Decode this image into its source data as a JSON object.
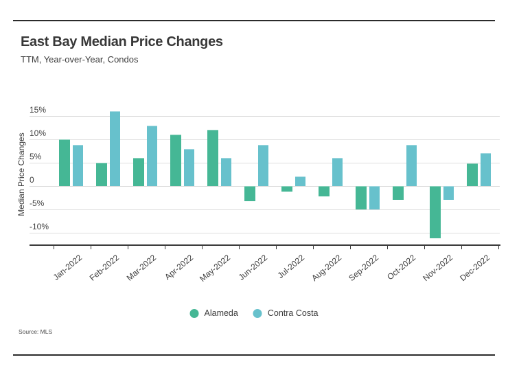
{
  "header": {
    "title": "East Bay Median Price Changes",
    "subtitle": "TTM, Year-over-Year, Condos"
  },
  "footer": {
    "source": "Source: MLS"
  },
  "legend": [
    {
      "label": "Alameda",
      "color": "#45b795"
    },
    {
      "label": "Contra Costa",
      "color": "#67c1cc"
    }
  ],
  "colors": {
    "alameda": "#45b795",
    "contra_costa": "#67c1cc",
    "gridline": "#dedede",
    "axis": "#3a3a3a"
  },
  "chart_data": {
    "type": "bar",
    "title": "East Bay Median Price Changes",
    "subtitle": "TTM, Year-over-Year, Condos",
    "xlabel": "",
    "ylabel": "Median Price Changes",
    "categories": [
      "Jan-2022",
      "Feb-2022",
      "Mar-2022",
      "Apr-2022",
      "May-2022",
      "Jun-2022",
      "Jul-2022",
      "Aug-2022",
      "Sep-2022",
      "Oct-2022",
      "Nov-2022",
      "Dec-2022"
    ],
    "series": [
      {
        "name": "Alameda",
        "color": "#45b795",
        "values": [
          10.0,
          5.0,
          6.1,
          11.0,
          12.0,
          -3.2,
          -1.1,
          -2.2,
          -5.0,
          -3.0,
          -11.1,
          4.9
        ]
      },
      {
        "name": "Contra Costa",
        "color": "#67c1cc",
        "values": [
          8.9,
          16.1,
          13.0,
          8.0,
          6.1,
          8.9,
          2.0,
          6.0,
          -5.0,
          8.9,
          -2.9,
          7.0
        ]
      }
    ],
    "yticks": [
      {
        "value": 15,
        "label": "15%"
      },
      {
        "value": 10,
        "label": "10%"
      },
      {
        "value": 5,
        "label": "5%"
      },
      {
        "value": 0,
        "label": "0"
      },
      {
        "value": -5,
        "label": "-5%"
      },
      {
        "value": -10,
        "label": "-10%"
      }
    ],
    "ylim": [
      -12.6,
      17.0
    ],
    "grid": true,
    "legend_position": "bottom",
    "unit": "%"
  }
}
